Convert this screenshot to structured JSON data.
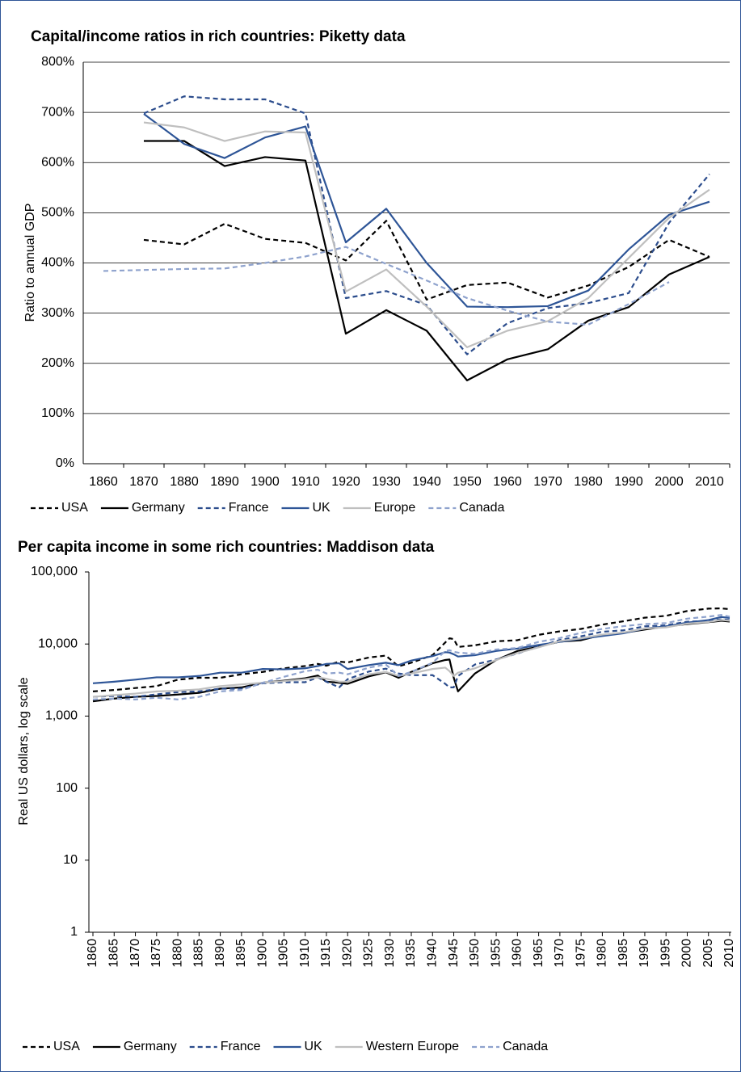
{
  "chart_data": [
    {
      "type": "line",
      "title": "Capital/income ratios in rich countries: Piketty data",
      "y_label": "Ratio to annual GDP",
      "categories": [
        "1860",
        "1870",
        "1880",
        "1890",
        "1900",
        "1910",
        "1920",
        "1930",
        "1940",
        "1950",
        "1960",
        "1970",
        "1980",
        "1990",
        "2000",
        "2010"
      ],
      "ylim": [
        0,
        800
      ],
      "yticks": [
        {
          "value": 0,
          "label": "0%"
        },
        {
          "value": 100,
          "label": "100%"
        },
        {
          "value": 200,
          "label": "200%"
        },
        {
          "value": 300,
          "label": "300%"
        },
        {
          "value": 400,
          "label": "400%"
        },
        {
          "value": 500,
          "label": "500%"
        },
        {
          "value": 600,
          "label": "600%"
        },
        {
          "value": 700,
          "label": "700%"
        },
        {
          "value": 800,
          "label": "800%"
        }
      ],
      "grid": true,
      "legend": "bottom",
      "series": [
        {
          "name": "USA",
          "color": "#000000",
          "dashed": true,
          "values": [
            null,
            446,
            437,
            478,
            448,
            440,
            405,
            484,
            327,
            356,
            361,
            331,
            355,
            392,
            446,
            412
          ]
        },
        {
          "name": "Germany",
          "color": "#000000",
          "dashed": false,
          "values": [
            null,
            643,
            643,
            593,
            611,
            604,
            259,
            306,
            265,
            166,
            208,
            228,
            285,
            312,
            377,
            412
          ]
        },
        {
          "name": "France",
          "color": "#2b4c8c",
          "dashed": true,
          "values": [
            null,
            698,
            732,
            726,
            726,
            698,
            330,
            344,
            316,
            218,
            280,
            310,
            320,
            340,
            480,
            577
          ]
        },
        {
          "name": "UK",
          "color": "#2e5597",
          "dashed": false,
          "values": [
            null,
            697,
            637,
            609,
            650,
            672,
            441,
            508,
            400,
            313,
            312,
            314,
            345,
            427,
            496,
            522
          ]
        },
        {
          "name": "Europe",
          "color": "#bfbfbf",
          "dashed": false,
          "values": [
            null,
            680,
            670,
            643,
            662,
            660,
            343,
            387,
            313,
            232,
            265,
            284,
            330,
            410,
            490,
            546
          ]
        },
        {
          "name": "Canada",
          "color": "#8ea2cd",
          "dashed": true,
          "values": [
            384,
            386,
            388,
            389,
            400,
            413,
            432,
            398,
            365,
            330,
            305,
            283,
            277,
            318,
            362,
            null
          ]
        }
      ]
    },
    {
      "type": "line",
      "title": "Per capita income in some rich countries: Maddison data",
      "y_label": "Real US dollars, log scale",
      "log_scale": true,
      "x": [
        1860,
        1865,
        1870,
        1875,
        1880,
        1885,
        1890,
        1895,
        1900,
        1905,
        1910,
        1913,
        1915,
        1918,
        1920,
        1925,
        1929,
        1932,
        1935,
        1940,
        1943,
        1944,
        1945,
        1946,
        1950,
        1955,
        1960,
        1965,
        1970,
        1975,
        1980,
        1985,
        1990,
        1995,
        2000,
        2005,
        2008,
        2010
      ],
      "xlim": [
        1860,
        2010
      ],
      "xticks": [
        1860,
        1865,
        1870,
        1875,
        1880,
        1885,
        1890,
        1895,
        1900,
        1905,
        1910,
        1915,
        1920,
        1925,
        1930,
        1935,
        1940,
        1945,
        1950,
        1955,
        1960,
        1965,
        1970,
        1975,
        1980,
        1985,
        1990,
        1995,
        2000,
        2005,
        2010
      ],
      "ylim": [
        1,
        100000
      ],
      "yticks": [
        1,
        10,
        100,
        {
          "value": 1000,
          "label": "1,000"
        },
        {
          "value": 10000,
          "label": "10,000"
        },
        {
          "value": 100000,
          "label": "100,000"
        }
      ],
      "grid": false,
      "legend": "bottom",
      "series": [
        {
          "name": "USA",
          "color": "#000000",
          "dashed": true,
          "values": [
            2200,
            2300,
            2450,
            2600,
            3200,
            3400,
            3400,
            3800,
            4100,
            4600,
            4950,
            5300,
            5000,
            5700,
            5550,
            6500,
            6900,
            4900,
            5500,
            7000,
            10500,
            12000,
            11700,
            9100,
            9600,
            10900,
            11300,
            13400,
            15000,
            16200,
            18600,
            20700,
            23200,
            24600,
            28700,
            31000,
            31200,
            30500
          ]
        },
        {
          "name": "Germany",
          "color": "#000000",
          "dashed": false,
          "values": [
            1600,
            1750,
            1850,
            1900,
            1990,
            2100,
            2400,
            2500,
            2900,
            3100,
            3350,
            3650,
            3000,
            2900,
            2800,
            3550,
            4050,
            3400,
            4100,
            5400,
            6000,
            6100,
            3400,
            2200,
            3900,
            6000,
            8000,
            9200,
            10800,
            11300,
            13400,
            14300,
            15900,
            17500,
            18900,
            20100,
            21000,
            20500
          ]
        },
        {
          "name": "France",
          "color": "#2b4c8c",
          "dashed": true,
          "values": [
            1850,
            1900,
            1850,
            2000,
            2150,
            2200,
            2400,
            2400,
            2850,
            2950,
            2950,
            3450,
            3000,
            2500,
            3250,
            4150,
            4550,
            3900,
            3700,
            3700,
            2800,
            2500,
            2500,
            3600,
            5200,
            6100,
            7400,
            9200,
            11400,
            12800,
            14800,
            15500,
            17600,
            18200,
            20400,
            21000,
            22000,
            21500
          ]
        },
        {
          "name": "UK",
          "color": "#2e5597",
          "dashed": false,
          "values": [
            2850,
            3000,
            3200,
            3450,
            3450,
            3600,
            4000,
            4000,
            4500,
            4450,
            4600,
            4950,
            5300,
            5400,
            4500,
            5100,
            5500,
            5100,
            5900,
            6800,
            7700,
            7600,
            7200,
            6700,
            7000,
            8000,
            8650,
            9700,
            10700,
            11800,
            12900,
            14100,
            16400,
            17600,
            19800,
            21500,
            23700,
            23000
          ]
        },
        {
          "name": "Western Europe",
          "color": "#bfbfbf",
          "dashed": false,
          "values": [
            1850,
            1950,
            2050,
            2200,
            2250,
            2350,
            2600,
            2750,
            2900,
            3050,
            3250,
            3450,
            3300,
            3000,
            3000,
            3800,
            4100,
            3600,
            3900,
            4500,
            4700,
            4200,
            3600,
            4000,
            4600,
            6000,
            7500,
            9000,
            11000,
            12000,
            13500,
            14500,
            16400,
            17000,
            19200,
            20200,
            21600,
            21000
          ]
        },
        {
          "name": "Canada",
          "color": "#8ea2cd",
          "dashed": true,
          "values": [
            1700,
            1750,
            1700,
            1800,
            1700,
            1850,
            2200,
            2300,
            2900,
            3500,
            4200,
            4400,
            3900,
            4000,
            3800,
            4700,
            5200,
            3600,
            4100,
            5500,
            8000,
            8200,
            7800,
            7600,
            7300,
            8400,
            8800,
            10700,
            12100,
            14300,
            16200,
            17700,
            18900,
            19500,
            22500,
            24000,
            25300,
            24000
          ]
        }
      ]
    }
  ]
}
